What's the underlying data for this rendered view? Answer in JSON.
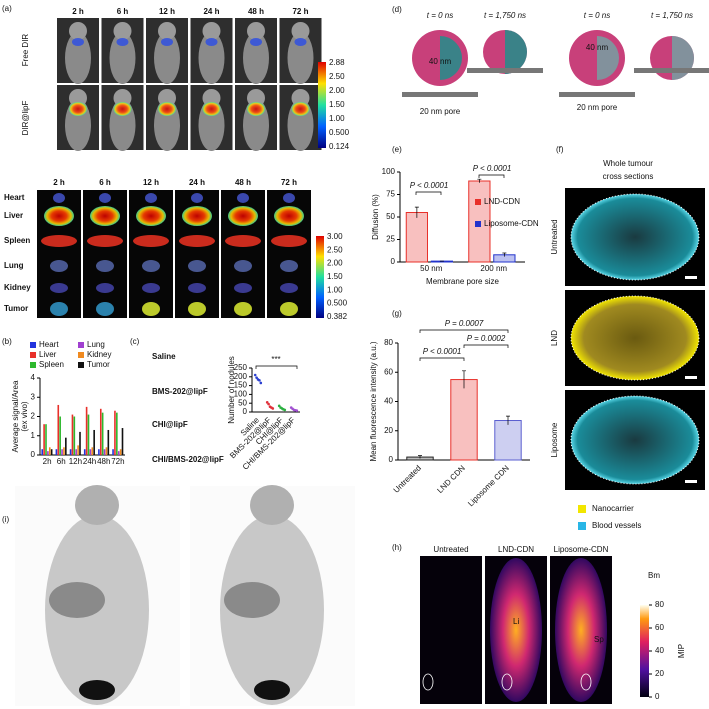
{
  "panel_labels": [
    "(a)",
    "(b)",
    "(c)",
    "(d)",
    "(e)",
    "(f)",
    "(g)",
    "(h)",
    "(i)"
  ],
  "panel_a": {
    "in_vivo_times": [
      "2 h",
      "6 h",
      "12 h",
      "24 h",
      "48 h",
      "72 h"
    ],
    "rows": [
      "Free DIR",
      "DIR@lipF"
    ],
    "colorbar_top": [
      "2.88",
      "2.50",
      "2.00",
      "1.50",
      "1.00",
      "0.500",
      "0.124"
    ],
    "ex_vivo_times": [
      "2 h",
      "6 h",
      "12 h",
      "24 h",
      "48 h",
      "72 h"
    ],
    "organs": [
      "Heart",
      "Liver",
      "Spleen",
      "Lung",
      "Kidney",
      "Tumor"
    ],
    "colorbar_bottom": [
      "3.00",
      "2.50",
      "2.00",
      "1.50",
      "1.00",
      "0.500",
      "0.382"
    ]
  },
  "panel_c_rows": [
    "Saline",
    "BMS-202@lipF",
    "CHI@lipF",
    "CHI/BMS-202@lipF"
  ],
  "panel_d": {
    "times": [
      "t = 0 ns",
      "t = 1,750 ns",
      "t = 0 ns",
      "t = 1,750 ns"
    ],
    "diameter": [
      "40 nm",
      "40 nm"
    ],
    "pore": [
      "20 nm pore",
      "20 nm pore"
    ]
  },
  "panel_f": {
    "title": [
      "Whole tumour",
      "cross sections"
    ],
    "rows": [
      "Untreated",
      "LND",
      "Liposome"
    ],
    "legend": [
      {
        "name": "Nanocarrier",
        "color": "#f2e600"
      },
      {
        "name": "Blood vessels",
        "color": "#29b6e6"
      }
    ]
  },
  "panel_h": {
    "columns": [
      "Untreated",
      "LND-CDN",
      "Liposome-CDN"
    ],
    "organs": [
      "Bm",
      "Li",
      "Sp"
    ],
    "colorbar_label": "MIP",
    "colorbar_ticks": [
      80,
      60,
      40,
      20,
      0
    ],
    "colorbar_lim": [
      0,
      80
    ]
  },
  "chart_data": [
    {
      "type": "bar",
      "ylabel": [
        "Average signal/Area",
        "(ex vivo)"
      ],
      "categories": [
        "2h",
        "6h",
        "12h",
        "24h",
        "48h",
        "72h"
      ],
      "ylim": [
        0,
        4
      ],
      "yticks": [
        0,
        1,
        2,
        3,
        4
      ],
      "legend": "top",
      "series": [
        {
          "name": "Heart",
          "color": "#2233dd",
          "values": [
            0.3,
            0.3,
            0.3,
            0.3,
            0.3,
            0.3
          ]
        },
        {
          "name": "Liver",
          "color": "#e8302a",
          "values": [
            1.6,
            2.6,
            2.1,
            2.5,
            2.4,
            2.3
          ]
        },
        {
          "name": "Spleen",
          "color": "#2eb82e",
          "values": [
            1.6,
            2.0,
            2.0,
            2.1,
            2.2,
            2.2
          ]
        },
        {
          "name": "Lung",
          "color": "#a040d0",
          "values": [
            0.2,
            0.3,
            0.3,
            0.3,
            0.3,
            0.2
          ]
        },
        {
          "name": "Kidney",
          "color": "#f08a20",
          "values": [
            0.4,
            0.4,
            0.5,
            0.4,
            0.4,
            0.3
          ]
        },
        {
          "name": "Tumor",
          "color": "#111111",
          "values": [
            0.3,
            0.9,
            1.2,
            1.3,
            1.3,
            1.4
          ]
        }
      ]
    },
    {
      "type": "strip",
      "ylabel": "Number of nodules",
      "categories": [
        "Saline",
        "BMS-202@lipF",
        "CHI@lipF",
        "CHI/BMS-202@lipF"
      ],
      "ylim": [
        0,
        250
      ],
      "yticks": [
        0,
        50,
        100,
        150,
        200,
        250
      ],
      "colors": [
        "#2a3fd0",
        "#e0303a",
        "#2ab040",
        "#a050d0"
      ],
      "points": [
        [
          210,
          195,
          185,
          180,
          165
        ],
        [
          55,
          45,
          30,
          25,
          20
        ],
        [
          35,
          25,
          20,
          15,
          12
        ],
        [
          25,
          18,
          12,
          10,
          8
        ]
      ],
      "annotations": [
        "***"
      ]
    },
    {
      "type": "bar",
      "ylabel": "Diffusion (%)",
      "xlabel": "Membrane pore size",
      "categories": [
        "50 nm",
        "200 nm"
      ],
      "ylim": [
        0,
        100
      ],
      "yticks": [
        0,
        25,
        50,
        75,
        100
      ],
      "legend": "right",
      "bar_style": "outlined",
      "series": [
        {
          "name": "LND-CDN",
          "color": "#e8302a",
          "values": [
            55,
            90
          ],
          "errors": [
            6,
            2
          ]
        },
        {
          "name": "Liposome-CDN",
          "color": "#2233cc",
          "values": [
            1,
            8
          ],
          "errors": [
            0,
            2
          ]
        }
      ],
      "annotations": [
        "P < 0.0001",
        "P < 0.0001"
      ]
    },
    {
      "type": "bar",
      "ylabel": "Mean fluorescence intensity (a.u.)",
      "categories": [
        "Untreated",
        "LND CDN",
        "Liposome CDN"
      ],
      "values": [
        2,
        55,
        27
      ],
      "errors": [
        1,
        6,
        3
      ],
      "colors": [
        "#222222",
        "#e8302a",
        "#5a5fd0"
      ],
      "ylim": [
        0,
        80
      ],
      "yticks": [
        0,
        20,
        40,
        60,
        80
      ],
      "bar_style": "outlined",
      "annotations": [
        "P = 0.0007",
        "P < 0.0001",
        "P = 0.0002"
      ]
    }
  ]
}
